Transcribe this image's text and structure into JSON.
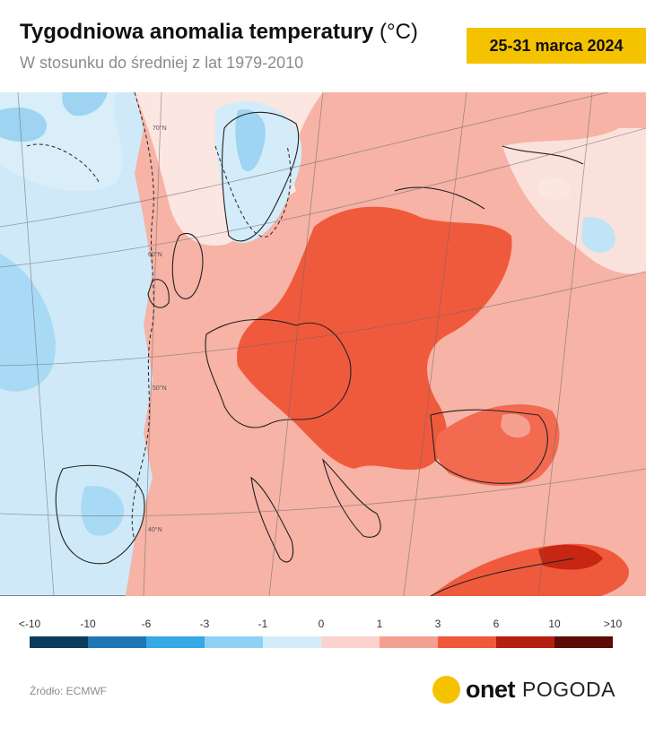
{
  "header": {
    "title": "Tygodniowa anomalia temperatury",
    "title_unit": "(°C)",
    "subtitle": "W stosunku do średniej z lat 1979-2010",
    "date_range": "25-31 marca 2024"
  },
  "map": {
    "graticule_labels": [
      "70°N",
      "60°N",
      "50°N",
      "40°N"
    ],
    "region": "Europe",
    "dominant_anomaly": "warm"
  },
  "legend": {
    "labels": [
      "<-10",
      "-10",
      "-6",
      "-3",
      "-1",
      "0",
      "1",
      "3",
      "6",
      "10",
      ">10"
    ],
    "colors": [
      "#0d3d5c",
      "#1f77b4",
      "#36a8e6",
      "#8fd0f5",
      "#d4ecfa",
      "#fbd3cc",
      "#f3a091",
      "#f05a3c",
      "#b51f12",
      "#5c0b06"
    ]
  },
  "footer": {
    "source": "Źródło: ECMWF",
    "brand_name": "onet",
    "brand_section": "POGODA"
  }
}
